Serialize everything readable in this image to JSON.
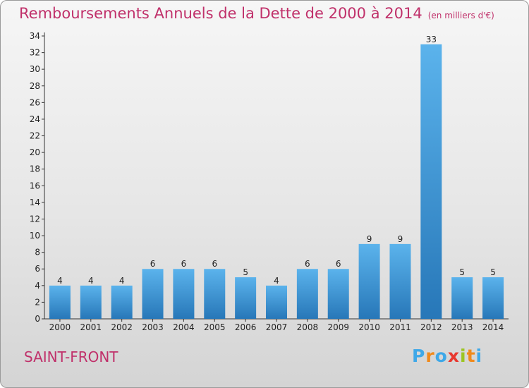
{
  "title": "Remboursements Annuels de la Dette de 2000 à 2014",
  "unit_note": "(en milliers d'€)",
  "commune": "SAINT-FRONT",
  "logo": {
    "letters": [
      "P",
      "r",
      "o",
      "x",
      "i",
      "t",
      "i"
    ],
    "colors": [
      "#3ea8e8",
      "#f08a1c",
      "#3ea8e8",
      "#e8382f",
      "#9cc521",
      "#f08a1c",
      "#3ea8e8"
    ]
  },
  "colors": {
    "bar_light": "#5bb3ec",
    "bar_dark": "#2777b8",
    "title": "#c0306a"
  },
  "chart_data": {
    "type": "bar",
    "categories": [
      "2000",
      "2001",
      "2002",
      "2003",
      "2004",
      "2005",
      "2006",
      "2007",
      "2008",
      "2009",
      "2010",
      "2011",
      "2012",
      "2013",
      "2014"
    ],
    "values": [
      4,
      4,
      4,
      6,
      6,
      6,
      5,
      4,
      6,
      6,
      9,
      9,
      33,
      5,
      5
    ],
    "ylim": [
      0,
      34
    ],
    "yticks": [
      0,
      2,
      4,
      6,
      8,
      10,
      12,
      14,
      16,
      18,
      20,
      22,
      24,
      26,
      28,
      30,
      32,
      34
    ],
    "grid": false,
    "legend": "none"
  }
}
